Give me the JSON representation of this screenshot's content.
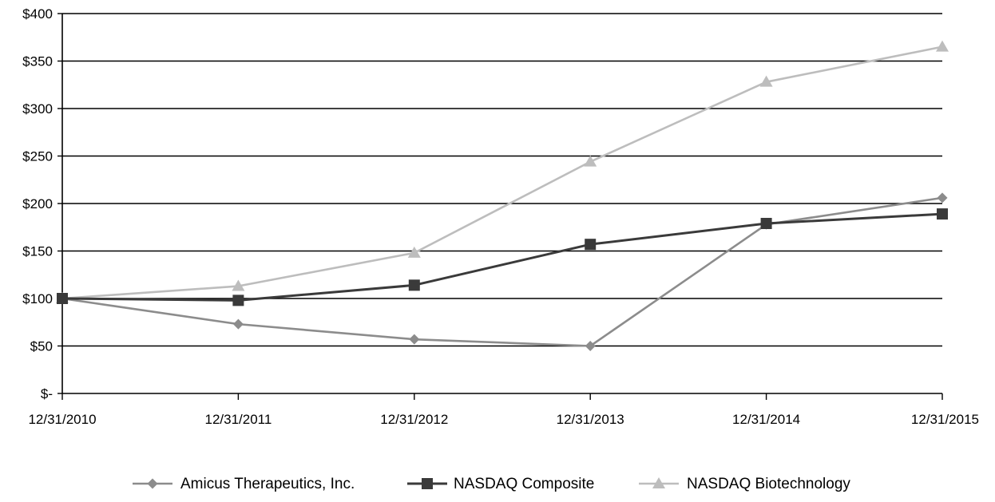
{
  "chart_data": {
    "type": "line",
    "title": "",
    "xlabel": "",
    "ylabel": "",
    "categories": [
      "12/31/2010",
      "12/31/2011",
      "12/31/2012",
      "12/31/2013",
      "12/31/2014",
      "12/31/2015"
    ],
    "y_ticks": [
      0,
      50,
      100,
      150,
      200,
      250,
      300,
      350,
      400
    ],
    "y_tick_labels": [
      "$-",
      "$50",
      "$100",
      "$150",
      "$200",
      "$250",
      "$300",
      "$350",
      "$400"
    ],
    "ylim": [
      0,
      400
    ],
    "grid": "horizontal",
    "legend_position": "bottom",
    "series": [
      {
        "name": "Amicus Therapeutics, Inc.",
        "marker": "diamond",
        "color": "#8c8c8c",
        "values": [
          100,
          73,
          57,
          50,
          178,
          206
        ]
      },
      {
        "name": "NASDAQ Composite",
        "marker": "square",
        "color": "#3a3a3a",
        "values": [
          100,
          98,
          114,
          157,
          179,
          189
        ]
      },
      {
        "name": "NASDAQ Biotechnology",
        "marker": "triangle",
        "color": "#bdbdbd",
        "values": [
          100,
          113,
          148,
          244,
          328,
          365
        ]
      }
    ]
  }
}
